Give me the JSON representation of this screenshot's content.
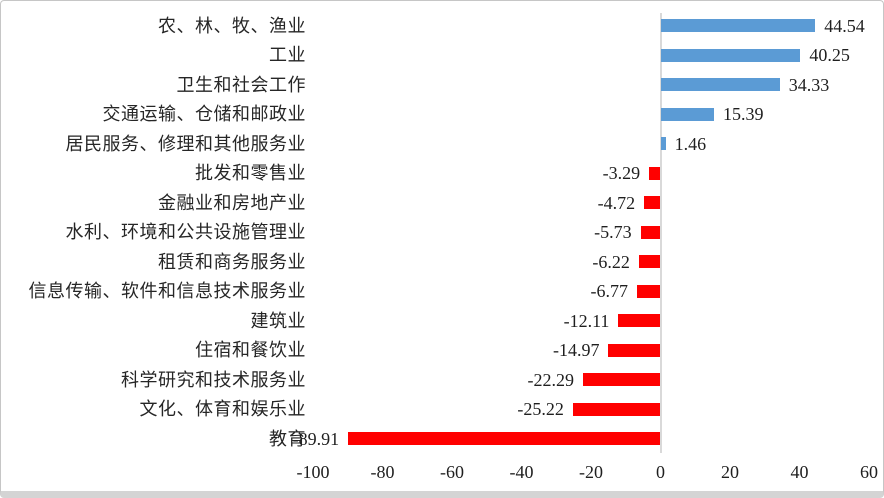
{
  "chart_data": {
    "type": "bar",
    "orientation": "horizontal",
    "title": "",
    "xlabel": "",
    "ylabel": "",
    "xlim": [
      -100,
      60
    ],
    "x_tick_labels": [
      "-100",
      "-80",
      "-60",
      "-40",
      "-20",
      "0",
      "20",
      "40",
      "60"
    ],
    "x_tick_values": [
      -100,
      -80,
      -60,
      -40,
      -20,
      0,
      20,
      40,
      60
    ],
    "grid": false,
    "legend": "none",
    "colors": {
      "positive_bar": "#5B9BD5",
      "negative_bar": "#FF0000",
      "zero_line": "#D9D9D9",
      "text": "#262626",
      "frame_border": "#C6C6C6",
      "frame_bottom_band": "#D4D4D4"
    },
    "categories": [
      "农、林、牧、渔业",
      "工业",
      "卫生和社会工作",
      "交通运输、仓储和邮政业",
      "居民服务、修理和其他服务业",
      "批发和零售业",
      "金融业和房地产业",
      "水利、环境和公共设施管理业",
      "租赁和商务服务业",
      "信息传输、软件和信息技术服务业",
      "建筑业",
      "住宿和餐饮业",
      "科学研究和技术服务业",
      "文化、体育和娱乐业",
      "教育"
    ],
    "values": [
      44.54,
      40.25,
      34.33,
      15.39,
      1.46,
      -3.29,
      -4.72,
      -5.73,
      -6.22,
      -6.77,
      -12.11,
      -14.97,
      -22.29,
      -25.22,
      -89.91
    ],
    "value_labels": [
      "44.54",
      "40.25",
      "34.33",
      "15.39",
      "1.46",
      "-3.29",
      "-4.72",
      "-5.73",
      "-6.22",
      "-6.77",
      "-12.11",
      "-14.97",
      "-22.29",
      "-25.22",
      "-89.91"
    ]
  }
}
